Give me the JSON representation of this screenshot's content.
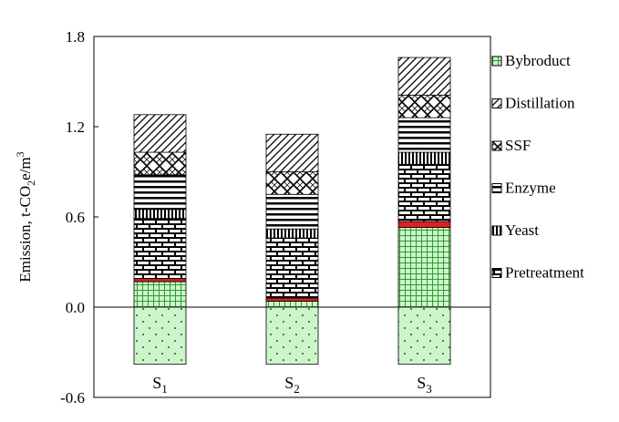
{
  "chart_data": {
    "type": "bar",
    "stacked": true,
    "categories": [
      "S1",
      "S2",
      "S3"
    ],
    "category_display": [
      {
        "base": "S",
        "sub": "1"
      },
      {
        "base": "S",
        "sub": "2"
      },
      {
        "base": "S",
        "sub": "3"
      }
    ],
    "ylabel": {
      "pre": "Emission, t-CO",
      "sub": "2",
      "mid": "e/m",
      "sup": "3"
    },
    "ylim": [
      -0.6,
      1.8
    ],
    "yticks": [
      "-0.6",
      "0.0",
      "0.6",
      "1.2",
      "1.8"
    ],
    "ytick_values": [
      -0.6,
      0.0,
      0.6,
      1.2,
      1.8
    ],
    "grid": false,
    "legend_position": "right",
    "series": [
      {
        "name": "Bybroduct",
        "pattern": "grid-green",
        "values": [
          0.17,
          0.04,
          0.53
        ]
      },
      {
        "name": "Bybroduct",
        "pattern": "dots-green",
        "values": [
          -0.38,
          -0.38,
          -0.38
        ]
      },
      {
        "name": "Red band",
        "pattern": "red",
        "values": [
          0.02,
          0.02,
          0.04
        ]
      },
      {
        "name": "Pretreatment",
        "pattern": "brick",
        "values": [
          0.4,
          0.4,
          0.38
        ]
      },
      {
        "name": "Yeast",
        "pattern": "vertical",
        "values": [
          0.06,
          0.06,
          0.08
        ]
      },
      {
        "name": "Enzyme",
        "pattern": "horizontal",
        "values": [
          0.23,
          0.23,
          0.23
        ]
      },
      {
        "name": "SSF",
        "pattern": "crosshatch",
        "values": [
          0.15,
          0.15,
          0.15
        ]
      },
      {
        "name": "Distillation",
        "pattern": "diagonal",
        "values": [
          0.25,
          0.25,
          0.25
        ]
      }
    ],
    "legend": [
      {
        "label": "Bybroduct",
        "pattern": "grid-green"
      },
      {
        "label": "Distillation",
        "pattern": "diagonal"
      },
      {
        "label": "SSF",
        "pattern": "crosshatch"
      },
      {
        "label": "Enzyme",
        "pattern": "horizontal"
      },
      {
        "label": "Yeast",
        "pattern": "vertical"
      },
      {
        "label": "Pretreatment",
        "pattern": "brick"
      }
    ]
  }
}
